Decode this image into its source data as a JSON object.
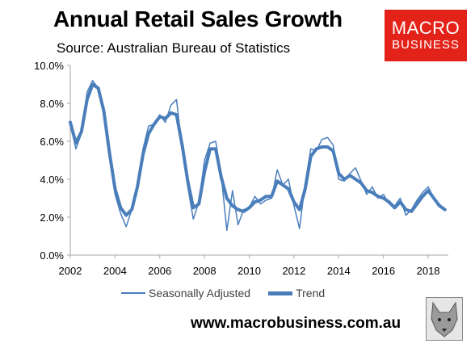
{
  "header": {
    "title": "Annual Retail Sales Growth",
    "subtitle": "Source: Australian Bureau of Statistics"
  },
  "logo": {
    "line1": "MACRO",
    "line2": "BUSINESS",
    "color": "#e32219"
  },
  "footer": {
    "url": "www.macrobusiness.com.au",
    "mascot_icon": "wolf-icon"
  },
  "colors": {
    "series": "#4a7ebb",
    "axis": "#a6a6a6"
  },
  "chart_data": {
    "type": "line",
    "xlim": [
      2002,
      2018.9
    ],
    "ylim": [
      0,
      10
    ],
    "x_ticks": [
      2002,
      2004,
      2006,
      2008,
      2010,
      2012,
      2014,
      2016,
      2018
    ],
    "x_tick_labels": [
      "2002",
      "2004",
      "2006",
      "2008",
      "2010",
      "2012",
      "2014",
      "2016",
      "2018"
    ],
    "y_ticks": [
      0,
      2,
      4,
      6,
      8,
      10
    ],
    "y_tick_labels": [
      "0.0%",
      "2.0%",
      "4.0%",
      "6.0%",
      "8.0%",
      "10.0%"
    ],
    "grid": false,
    "legend_position": "bottom",
    "series": [
      {
        "name": "Seasonally Adjusted",
        "x": [
          2002.0,
          2002.25,
          2002.5,
          2002.75,
          2003.0,
          2003.25,
          2003.5,
          2003.75,
          2004.0,
          2004.25,
          2004.5,
          2004.75,
          2005.0,
          2005.25,
          2005.5,
          2005.75,
          2006.0,
          2006.25,
          2006.5,
          2006.75,
          2007.0,
          2007.25,
          2007.5,
          2007.75,
          2008.0,
          2008.25,
          2008.5,
          2008.75,
          2009.0,
          2009.25,
          2009.5,
          2009.75,
          2010.0,
          2010.25,
          2010.5,
          2010.75,
          2011.0,
          2011.25,
          2011.5,
          2011.75,
          2012.0,
          2012.25,
          2012.5,
          2012.75,
          2013.0,
          2013.25,
          2013.5,
          2013.75,
          2014.0,
          2014.25,
          2014.5,
          2014.75,
          2015.0,
          2015.25,
          2015.5,
          2015.75,
          2016.0,
          2016.25,
          2016.5,
          2016.75,
          2017.0,
          2017.25,
          2017.5,
          2017.75,
          2018.0,
          2018.25,
          2018.5,
          2018.75
        ],
        "values": [
          7.0,
          5.6,
          6.4,
          8.6,
          9.2,
          8.8,
          7.6,
          5.2,
          3.2,
          2.2,
          1.5,
          2.4,
          3.6,
          5.6,
          6.8,
          6.9,
          7.4,
          7.0,
          7.9,
          8.2,
          5.6,
          3.6,
          1.9,
          2.8,
          5.0,
          5.9,
          6.0,
          4.2,
          1.3,
          3.4,
          1.6,
          2.4,
          2.5,
          3.1,
          2.7,
          2.9,
          3.0,
          4.5,
          3.7,
          4.0,
          2.6,
          1.4,
          3.8,
          5.6,
          5.5,
          6.1,
          6.2,
          5.8,
          4.0,
          3.9,
          4.3,
          4.6,
          3.9,
          3.2,
          3.6,
          3.0,
          3.2,
          2.7,
          2.6,
          3.0,
          2.1,
          2.4,
          2.9,
          3.3,
          3.6,
          3.0,
          2.7,
          2.4
        ]
      },
      {
        "name": "Trend",
        "x": [
          2002.0,
          2002.25,
          2002.5,
          2002.75,
          2003.0,
          2003.25,
          2003.5,
          2003.75,
          2004.0,
          2004.25,
          2004.5,
          2004.75,
          2005.0,
          2005.25,
          2005.5,
          2005.75,
          2006.0,
          2006.25,
          2006.5,
          2006.75,
          2007.0,
          2007.25,
          2007.5,
          2007.75,
          2008.0,
          2008.25,
          2008.5,
          2008.75,
          2009.0,
          2009.25,
          2009.5,
          2009.75,
          2010.0,
          2010.25,
          2010.5,
          2010.75,
          2011.0,
          2011.25,
          2011.5,
          2011.75,
          2012.0,
          2012.25,
          2012.5,
          2012.75,
          2013.0,
          2013.25,
          2013.5,
          2013.75,
          2014.0,
          2014.25,
          2014.5,
          2014.75,
          2015.0,
          2015.25,
          2015.5,
          2015.75,
          2016.0,
          2016.25,
          2016.5,
          2016.75,
          2017.0,
          2017.25,
          2017.5,
          2017.75,
          2018.0,
          2018.25,
          2018.5,
          2018.75
        ],
        "values": [
          7.0,
          5.9,
          6.5,
          8.2,
          9.0,
          8.8,
          7.6,
          5.4,
          3.5,
          2.5,
          2.1,
          2.4,
          3.6,
          5.3,
          6.4,
          6.9,
          7.3,
          7.2,
          7.5,
          7.4,
          5.8,
          3.9,
          2.5,
          2.7,
          4.4,
          5.6,
          5.6,
          4.1,
          3.0,
          2.6,
          2.4,
          2.3,
          2.5,
          2.8,
          2.9,
          3.1,
          3.1,
          3.9,
          3.7,
          3.5,
          2.8,
          2.4,
          3.5,
          5.2,
          5.6,
          5.7,
          5.7,
          5.5,
          4.3,
          4.0,
          4.2,
          4.0,
          3.8,
          3.4,
          3.3,
          3.1,
          3.0,
          2.8,
          2.5,
          2.8,
          2.4,
          2.3,
          2.7,
          3.1,
          3.4,
          3.0,
          2.6,
          2.4
        ]
      }
    ]
  }
}
